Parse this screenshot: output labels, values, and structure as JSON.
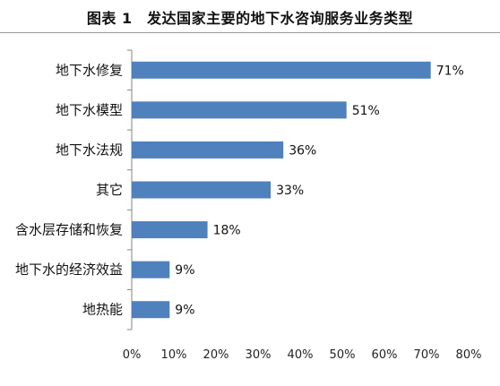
{
  "title": "图表 1　发达国家主要的地下水咨询服务业务类型",
  "chart_data": {
    "type": "bar",
    "orientation": "horizontal",
    "title": "图表 1　发达国家主要的地下水咨询服务业务类型",
    "categories": [
      "地下水修复",
      "地下水模型",
      "地下水法规",
      "其它",
      "含水层存储和恢复",
      "地下水的经济效益",
      "地热能"
    ],
    "values": [
      71,
      51,
      36,
      33,
      18,
      9,
      9
    ],
    "value_labels": [
      "71%",
      "51%",
      "36%",
      "33%",
      "18%",
      "9%",
      "9%"
    ],
    "xticks": [
      "0%",
      "10%",
      "20%",
      "30%",
      "40%",
      "50%",
      "60%",
      "70%",
      "80%"
    ],
    "xlim": [
      0,
      80
    ],
    "xlabel": "",
    "ylabel": "",
    "grid": false,
    "legend": "none",
    "bar_color": "#4f81bd"
  }
}
